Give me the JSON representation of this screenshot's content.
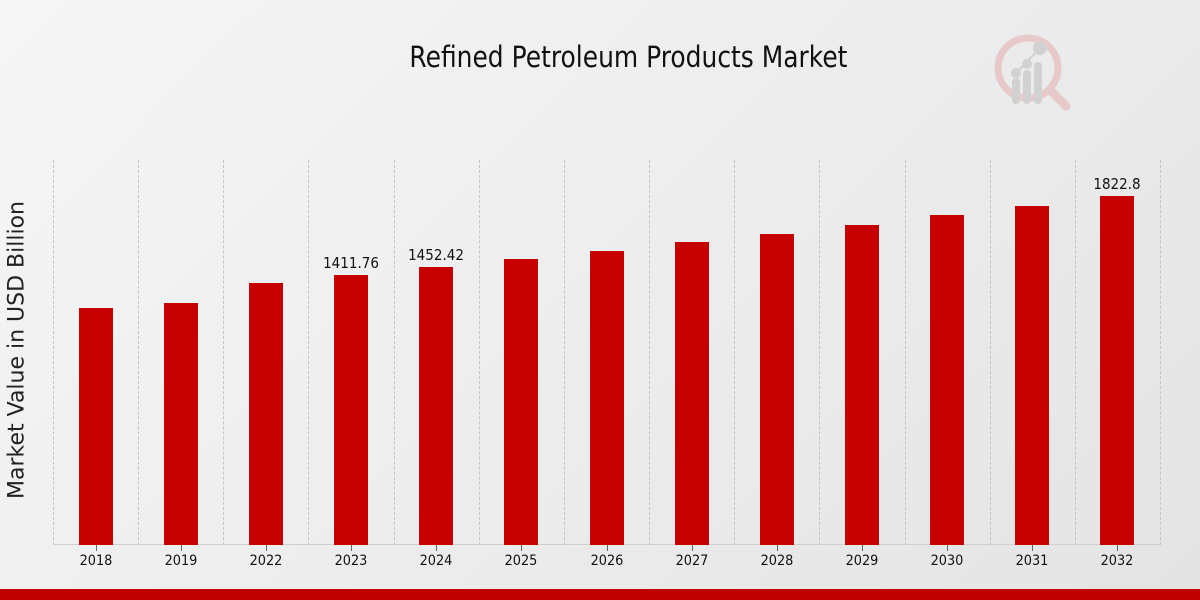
{
  "chart_data": {
    "type": "bar",
    "title": "Refined Petroleum Products Market",
    "xlabel": "",
    "ylabel": "Market Value in USD Billion",
    "categories": [
      "2018",
      "2019",
      "2022",
      "2023",
      "2024",
      "2025",
      "2026",
      "2027",
      "2028",
      "2029",
      "2030",
      "2031",
      "2032"
    ],
    "values": [
      1235,
      1266,
      1370,
      1411.76,
      1452.42,
      1495,
      1537,
      1584,
      1625,
      1672,
      1724,
      1771,
      1822.8
    ],
    "data_labels": {
      "2023": "1411.76",
      "2024": "1452.42",
      "2032": "1822.8"
    },
    "ylim": [
      0,
      2010
    ],
    "grid": {
      "vertical": true,
      "horizontal": false
    },
    "legend": null,
    "bar_color": "#c60000"
  },
  "colors": {
    "bar": "#c60000",
    "footer": "#c00000",
    "gridline": "#c4c4c4"
  },
  "logo": {
    "icon": "magnifier-chart-logo-icon"
  }
}
